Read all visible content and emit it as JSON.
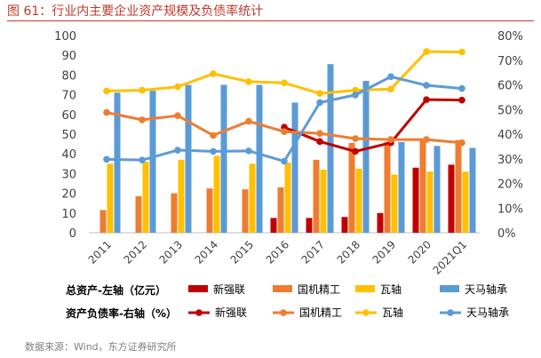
{
  "figure_title": "图 61：行业内主要企业资产规模及负债率统计",
  "source": "数据来源：Wind，东方证券研究所",
  "chart_data": {
    "type": "bar+line",
    "categories": [
      "2011",
      "2012",
      "2013",
      "2014",
      "2015",
      "2016",
      "2017",
      "2018",
      "2019",
      "2020",
      "2021Q1"
    ],
    "left_axis": {
      "label": "总资产-左轴（亿元）",
      "min": 0,
      "max": 100,
      "ticks": [
        0,
        10,
        20,
        30,
        40,
        50,
        60,
        70,
        80,
        90,
        100
      ]
    },
    "right_axis": {
      "label": "资产负债率-右轴（%）",
      "min": 0,
      "max": 80,
      "ticks": [
        "0%",
        "10%",
        "20%",
        "30%",
        "40%",
        "50%",
        "60%",
        "70%",
        "80%"
      ]
    },
    "bar_series": [
      {
        "name": "新强联",
        "color": "#c00000",
        "values": [
          null,
          null,
          null,
          null,
          null,
          7.5,
          7.5,
          8,
          10,
          33,
          34.5
        ]
      },
      {
        "name": "国机精工",
        "color": "#ed7d31",
        "values": [
          11.5,
          18.5,
          20,
          22.5,
          22,
          23,
          37,
          45.5,
          46,
          47,
          47
        ]
      },
      {
        "name": "瓦轴",
        "color": "#ffc000",
        "values": [
          35,
          36,
          37,
          39,
          35,
          35.5,
          32,
          32.5,
          29.5,
          31,
          31
        ]
      },
      {
        "name": "天马轴承",
        "color": "#5b9bd5",
        "values": [
          71,
          72,
          75,
          75,
          75,
          66,
          85.5,
          77,
          46,
          44,
          43
        ]
      }
    ],
    "line_series": [
      {
        "name": "新强联",
        "color": "#c00000",
        "values": [
          null,
          null,
          null,
          null,
          null,
          42.8,
          37,
          33,
          36.5,
          54,
          53.8
        ]
      },
      {
        "name": "国机精工",
        "color": "#ed7d31",
        "values": [
          48.8,
          45.8,
          47.5,
          39.5,
          45.2,
          41,
          40.3,
          38.2,
          37.8,
          37.8,
          36.5
        ]
      },
      {
        "name": "瓦轴",
        "color": "#ffc000",
        "values": [
          57.5,
          57.8,
          59.2,
          64.5,
          61.3,
          60.8,
          56.5,
          57.8,
          58.3,
          73.5,
          73.3
        ]
      },
      {
        "name": "天马轴承",
        "color": "#5b9bd5",
        "values": [
          29.8,
          29.5,
          33.5,
          33,
          33.2,
          29,
          52.8,
          55.9,
          63.3,
          59.8,
          58.5
        ]
      }
    ]
  }
}
